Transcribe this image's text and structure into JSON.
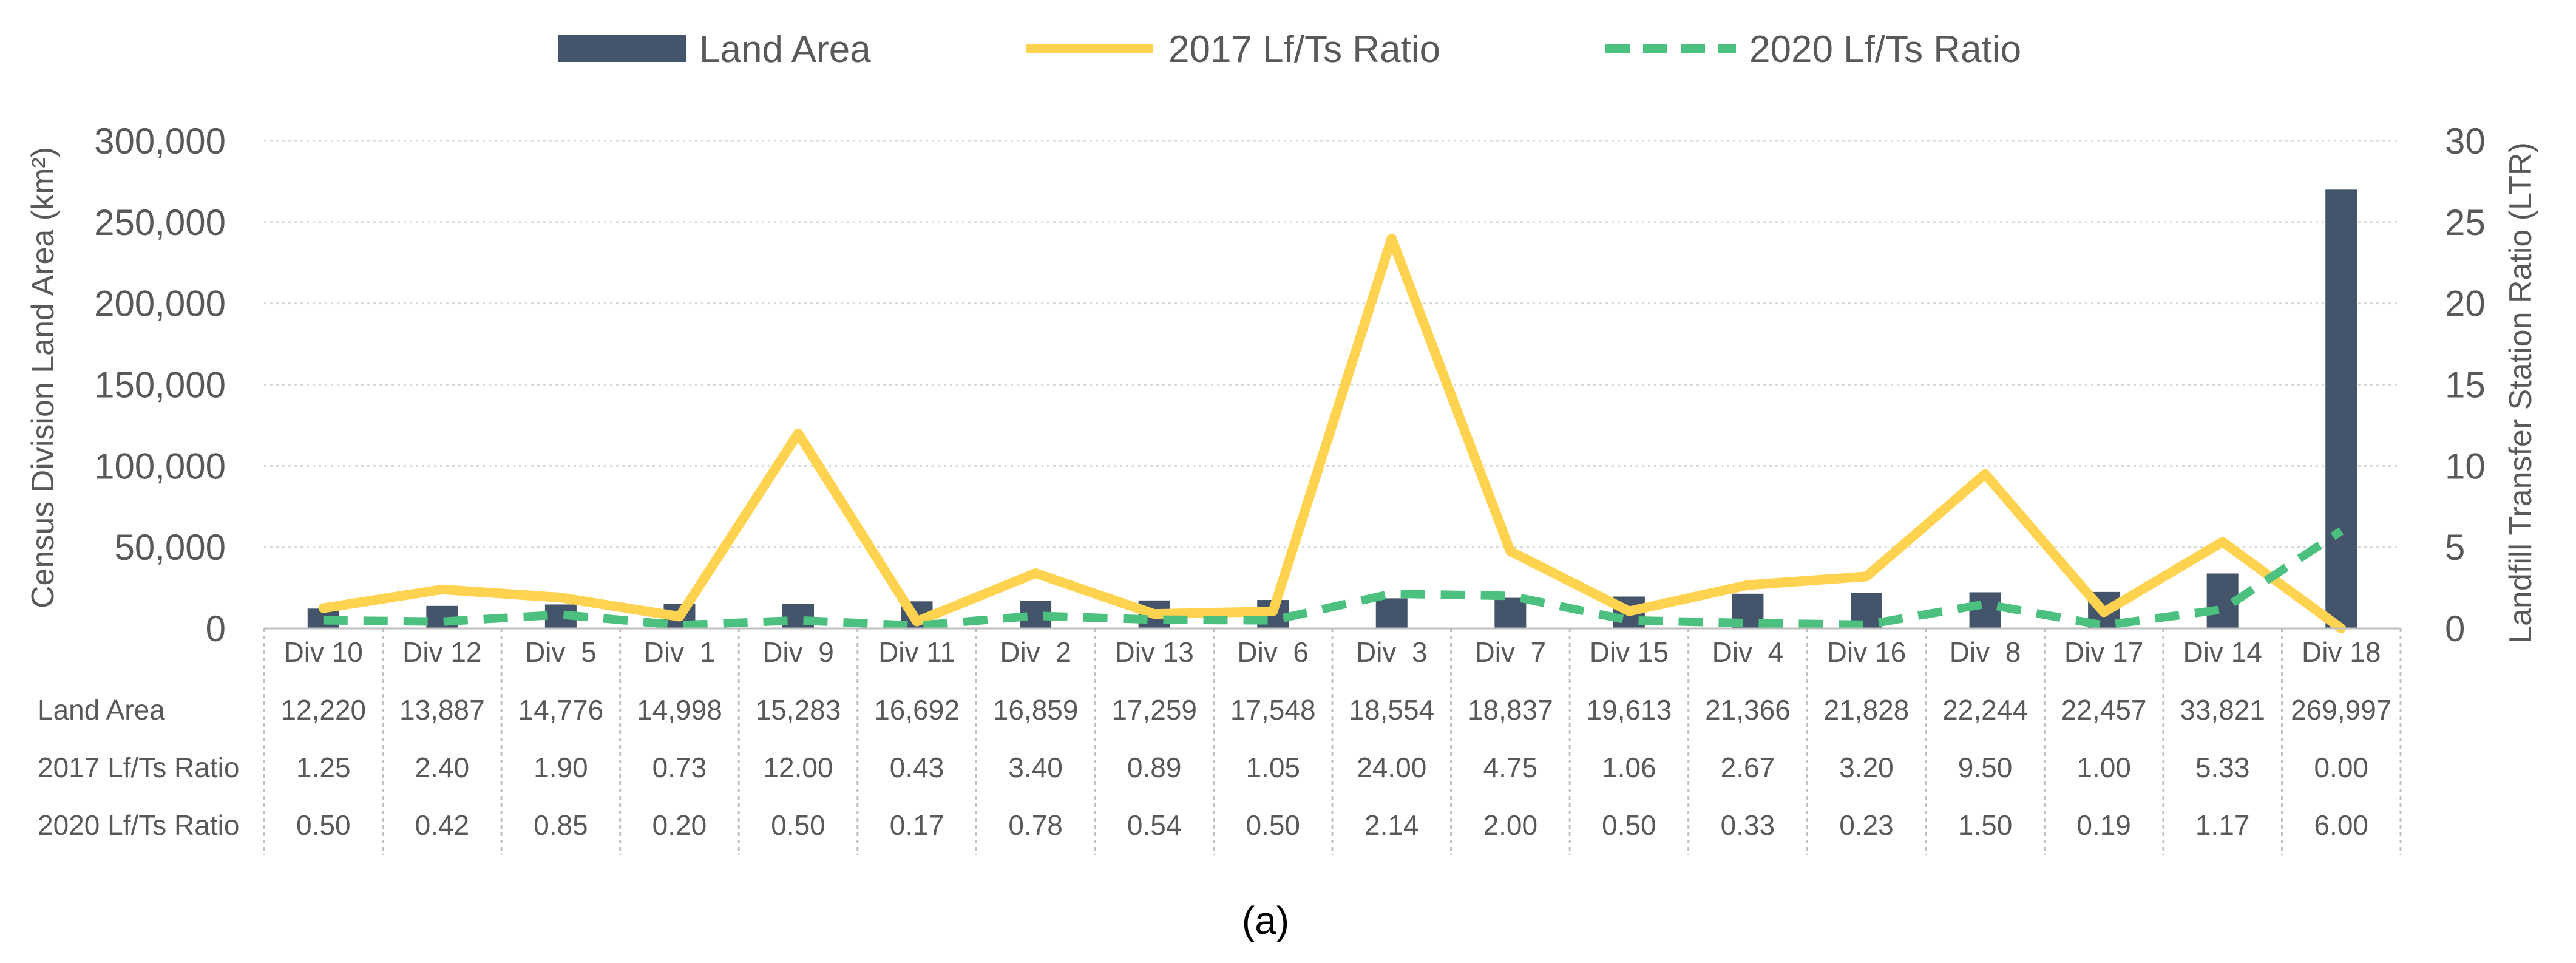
{
  "chart_data": {
    "type": "bar",
    "categories": [
      "Div 10",
      "Div 12",
      "Div  5",
      "Div  1",
      "Div  9",
      "Div 11",
      "Div  2",
      "Div 13",
      "Div  6",
      "Div  3",
      "Div  7",
      "Div 15",
      "Div  4",
      "Div 16",
      "Div  8",
      "Div 17",
      "Div 14",
      "Div 18"
    ],
    "series": [
      {
        "name": "Land Area",
        "kind": "bar",
        "axis": "left",
        "color": "#44546A",
        "values": [
          12220,
          13887,
          14776,
          14998,
          15283,
          16692,
          16859,
          17259,
          17548,
          18554,
          18837,
          19613,
          21366,
          21828,
          22244,
          22457,
          33821,
          269997
        ],
        "labels": [
          "12,220",
          "13,887",
          "14,776",
          "14,998",
          "15,283",
          "16,692",
          "16,859",
          "17,259",
          "17,548",
          "18,554",
          "18,837",
          "19,613",
          "21,366",
          "21,828",
          "22,244",
          "22,457",
          "33,821",
          "269,997"
        ]
      },
      {
        "name": "2017 Lf/Ts Ratio",
        "kind": "line",
        "axis": "right",
        "color": "#FFD34F",
        "values": [
          1.25,
          2.4,
          1.9,
          0.73,
          12.0,
          0.43,
          3.4,
          0.89,
          1.05,
          24.0,
          4.75,
          1.06,
          2.67,
          3.2,
          9.5,
          1.0,
          5.33,
          0.0
        ],
        "labels": [
          "1.25",
          "2.40",
          "1.90",
          "0.73",
          "12.00",
          "0.43",
          "3.40",
          "0.89",
          "1.05",
          "24.00",
          "4.75",
          "1.06",
          "2.67",
          "3.20",
          "9.50",
          "1.00",
          "5.33",
          "0.00"
        ]
      },
      {
        "name": "2020 Lf/Ts Ratio",
        "kind": "line-dashed",
        "axis": "right",
        "color": "#4BC07F",
        "values": [
          0.5,
          0.42,
          0.85,
          0.2,
          0.5,
          0.17,
          0.78,
          0.54,
          0.5,
          2.14,
          2.0,
          0.5,
          0.33,
          0.23,
          1.5,
          0.19,
          1.17,
          6.0
        ],
        "labels": [
          "0.50",
          "0.42",
          "0.85",
          "0.20",
          "0.50",
          "0.17",
          "0.78",
          "0.54",
          "0.50",
          "2.14",
          "2.00",
          "0.50",
          "0.33",
          "0.23",
          "1.50",
          "0.19",
          "1.17",
          "6.00"
        ]
      }
    ],
    "y_left": {
      "label": "Census Division Land Area (km²)",
      "ylim": [
        0,
        300000
      ],
      "ticks": [
        0,
        50000,
        100000,
        150000,
        200000,
        250000,
        300000
      ],
      "tick_labels": [
        "0",
        "50,000",
        "100,000",
        "150,000",
        "200,000",
        "250,000",
        "300,000"
      ]
    },
    "y_right": {
      "label": "Landfill Transfer Station Ratio (LTR)",
      "ylim": [
        0,
        30
      ],
      "ticks": [
        0,
        5,
        10,
        15,
        20,
        25,
        30
      ],
      "tick_labels": [
        "0",
        "5",
        "10",
        "15",
        "20",
        "25",
        "30"
      ]
    },
    "grid": true,
    "legend_position": "top-center",
    "data_table": true,
    "caption": "(a)"
  },
  "colors": {
    "bar": "#44546A",
    "line2017": "#FFD34F",
    "line2020": "#4BC07F",
    "grid": "#D9D9D9",
    "text": "#595959"
  }
}
